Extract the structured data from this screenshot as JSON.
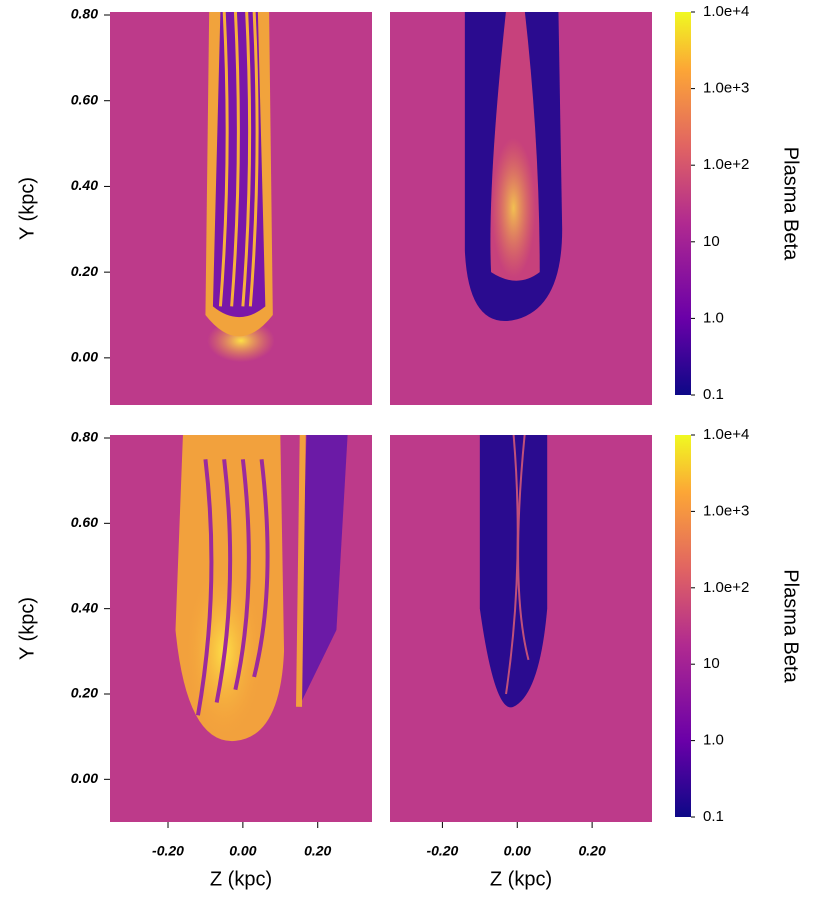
{
  "chart_data": [
    {
      "type": "heatmap",
      "ylabel": "Y (kpc)",
      "xlim": [
        -0.355,
        0.345
      ],
      "ylim": [
        -0.11,
        0.807
      ],
      "yticks": [
        {
          "value": 0,
          "label": "0.00"
        },
        {
          "value": 0.2,
          "label": "0.20"
        },
        {
          "value": 0.4,
          "label": "0.40"
        },
        {
          "value": 0.6,
          "label": "0.60"
        },
        {
          "value": 0.8,
          "label": "0.80"
        }
      ]
    },
    {
      "type": "heatmap",
      "xlim": [
        -0.34,
        0.36
      ],
      "ylim": [
        -0.11,
        0.807
      ],
      "colorbar": {
        "label": "Plasma Beta",
        "lim": [
          0.1,
          10000
        ],
        "log": true,
        "ticks": [
          0.1,
          {
            "value": 1,
            "label": "1.0"
          },
          10,
          {
            "value": 100,
            "label": "1.0e+2"
          },
          {
            "value": 1000,
            "label": "1.0e+3"
          },
          {
            "value": 10000,
            "label": "1.0e+4"
          }
        ]
      }
    },
    {
      "type": "heatmap",
      "ylabel": "Y (kpc)",
      "xlabel": "Z (kpc)",
      "xlim": [
        -0.355,
        0.345
      ],
      "ylim": [
        -0.1,
        0.807
      ],
      "xticks": [
        {
          "value": -0.2,
          "label": "-0.20"
        },
        {
          "value": 0,
          "label": "0.00"
        },
        {
          "value": 0.2,
          "label": "0.20"
        }
      ],
      "yticks": [
        {
          "value": 0,
          "label": "0.00"
        },
        {
          "value": 0.2,
          "label": "0.20"
        },
        {
          "value": 0.4,
          "label": "0.40"
        },
        {
          "value": 0.6,
          "label": "0.60"
        },
        {
          "value": 0.8,
          "label": "0.80"
        }
      ]
    },
    {
      "type": "heatmap",
      "xlabel": "Z (kpc)",
      "xlim": [
        -0.34,
        0.36
      ],
      "ylim": [
        -0.1,
        0.807
      ],
      "xticks": [
        {
          "value": -0.2,
          "label": "-0.20"
        },
        {
          "value": 0,
          "label": "0.00"
        },
        {
          "value": 0.2,
          "label": "0.20"
        }
      ],
      "colorbar": {
        "label": "Plasma Beta",
        "lim": [
          0.1,
          10000
        ],
        "log": true,
        "ticks": [
          0.1,
          {
            "value": 1,
            "label": "1.0"
          },
          10,
          {
            "value": 100,
            "label": "1.0e+2"
          },
          {
            "value": 1000,
            "label": "1.0e+3"
          },
          {
            "value": 10000,
            "label": "1.0e+4"
          }
        ]
      }
    }
  ]
}
